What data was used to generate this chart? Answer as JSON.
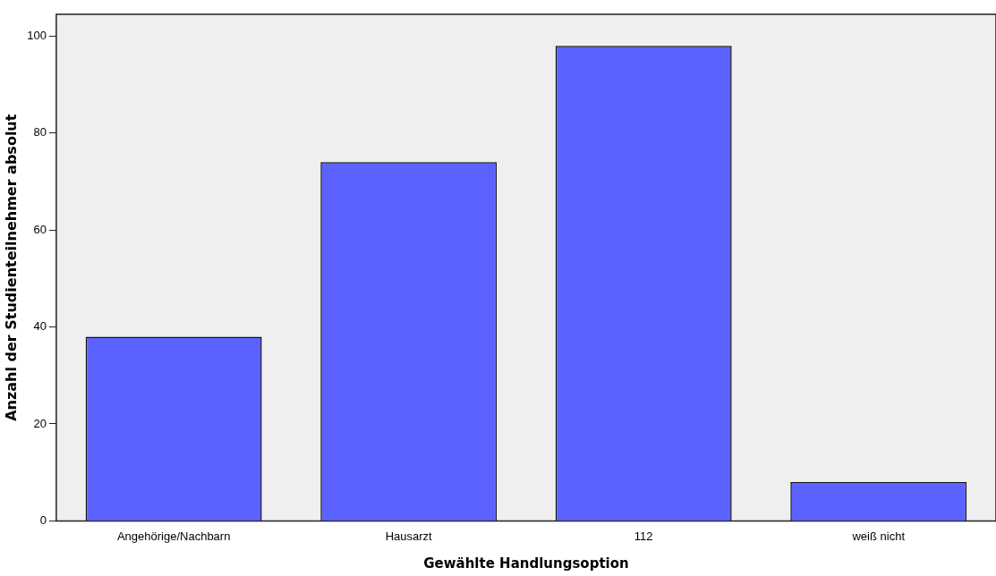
{
  "chart_data": {
    "type": "bar",
    "xlabel": "Gewählte Handlungsoption",
    "ylabel": "Anzahl der Studienteilnehmer absolut",
    "categories": [
      "Angehörige/Nachbarn",
      "Hausarzt",
      "112",
      "weiß nicht"
    ],
    "values": [
      38,
      74,
      98,
      8
    ],
    "color": "#5c62ff",
    "ylim": [
      0,
      104.5
    ],
    "yticks": [
      0,
      20,
      40,
      60,
      80,
      100
    ],
    "grid": false,
    "legend": false
  }
}
